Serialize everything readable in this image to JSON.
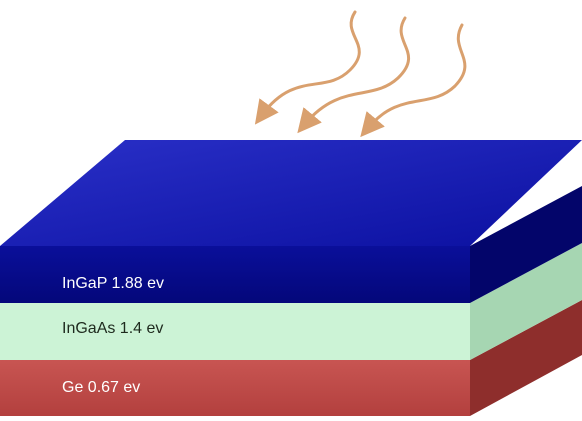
{
  "diagram": {
    "layers": [
      {
        "id": "ingap",
        "label": "InGaP  1.88 ev",
        "color_front": "#050a8c",
        "color_top": "#1a1fb0",
        "color_side": "#03056a"
      },
      {
        "id": "ingaas",
        "label": "InGaAs  1.4 ev",
        "color_front": "#ccf3d6",
        "color_side": "#a6d6b2"
      },
      {
        "id": "ge",
        "label": "Ge 0.67 ev",
        "color_front": "#bf4a48",
        "color_side": "#8e2e2c"
      }
    ],
    "light_arrows": {
      "count": 3,
      "color": "#d9a06e"
    }
  }
}
